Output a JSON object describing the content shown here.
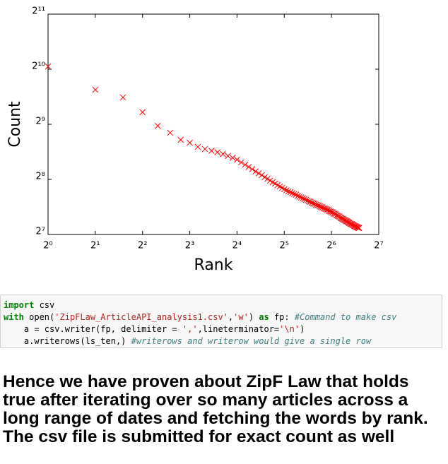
{
  "chart_data": {
    "type": "scatter",
    "xlabel": "Rank",
    "ylabel": "Count",
    "log_x": true,
    "log_y": true,
    "base": 2,
    "marker": "x",
    "color": "#ff0000",
    "xlim": [
      1,
      128
    ],
    "ylim": [
      128,
      2048
    ],
    "xticks": [
      {
        "value": 1,
        "label": "2⁰"
      },
      {
        "value": 2,
        "label": "2¹"
      },
      {
        "value": 4,
        "label": "2²"
      },
      {
        "value": 8,
        "label": "2³"
      },
      {
        "value": 16,
        "label": "2⁴"
      },
      {
        "value": 32,
        "label": "2⁵"
      },
      {
        "value": 64,
        "label": "2⁶"
      },
      {
        "value": 128,
        "label": "2⁷"
      }
    ],
    "yticks": [
      {
        "value": 128,
        "label": "2⁷"
      },
      {
        "value": 256,
        "label": "2⁸"
      },
      {
        "value": 512,
        "label": "2⁹"
      },
      {
        "value": 1024,
        "label": "2¹⁰"
      },
      {
        "value": 2048,
        "label": "2¹¹"
      }
    ],
    "x": [
      1,
      2,
      3,
      4,
      5,
      6,
      7,
      8,
      9,
      10,
      11,
      12,
      13,
      14,
      15,
      16,
      17,
      18,
      19,
      20,
      21,
      22,
      23,
      24,
      25,
      26,
      27,
      28,
      29,
      30,
      31,
      32,
      33,
      34,
      35,
      36,
      37,
      38,
      39,
      40,
      41,
      42,
      43,
      44,
      45,
      46,
      47,
      48,
      49,
      50,
      51,
      52,
      53,
      54,
      55,
      56,
      57,
      58,
      59,
      60,
      61,
      62,
      63,
      64,
      65,
      66,
      67,
      68,
      69,
      70,
      71,
      72,
      73,
      74,
      75,
      76,
      77,
      78,
      79,
      80,
      81,
      82,
      83,
      84,
      85,
      86,
      87,
      88,
      89,
      90,
      91,
      92,
      93,
      94,
      95,
      96
    ],
    "values": [
      1060,
      790,
      718,
      596,
      502,
      460,
      421,
      406,
      385,
      375,
      367,
      360,
      352,
      344,
      336,
      328,
      317,
      308,
      299,
      291,
      283,
      276,
      270,
      263,
      258,
      252,
      247,
      243,
      238,
      234,
      230,
      226,
      223,
      220,
      218,
      215,
      213,
      211,
      208,
      206,
      204,
      202,
      200,
      198,
      196,
      194,
      193,
      191,
      189,
      188,
      186,
      185,
      184,
      182,
      181,
      180,
      178,
      177,
      176,
      175,
      174,
      172,
      171,
      170,
      169,
      167,
      166,
      165,
      163,
      162,
      161,
      160,
      158,
      157,
      156,
      155,
      154,
      153,
      152,
      151,
      150,
      149,
      148,
      147,
      146,
      146,
      145,
      144,
      143,
      142,
      142,
      141,
      140,
      140,
      139,
      139
    ]
  },
  "code": {
    "lines": [
      [
        {
          "text": "import",
          "kind": "keyword"
        },
        {
          "text": " csv",
          "kind": "plain"
        }
      ],
      [
        {
          "text": "with",
          "kind": "keyword"
        },
        {
          "text": " open(",
          "kind": "plain"
        },
        {
          "text": "'ZipFLaw_ArticleAPI_analysis1.csv'",
          "kind": "string"
        },
        {
          "text": ",",
          "kind": "plain"
        },
        {
          "text": "'w'",
          "kind": "string"
        },
        {
          "text": ") ",
          "kind": "plain"
        },
        {
          "text": "as",
          "kind": "keyword"
        },
        {
          "text": " fp: ",
          "kind": "plain"
        },
        {
          "text": "#Command to make csv",
          "kind": "comment"
        }
      ],
      [
        {
          "text": "    a = csv.writer(fp, delimiter = ",
          "kind": "plain"
        },
        {
          "text": "','",
          "kind": "string"
        },
        {
          "text": ",lineterminator=",
          "kind": "plain"
        },
        {
          "text": "'\\n'",
          "kind": "string"
        },
        {
          "text": ")",
          "kind": "plain"
        }
      ],
      [
        {
          "text": "    a.writerows(ls_ten,) ",
          "kind": "plain"
        },
        {
          "text": "#writerows and writerow would give a single row",
          "kind": "comment"
        }
      ]
    ]
  },
  "markdown": {
    "heading": "Hence we have proven about ZipF Law that holds true after iterating over so many articles across a long range of dates and fetching the words by rank. The csv file is submitted for exact count as well"
  }
}
